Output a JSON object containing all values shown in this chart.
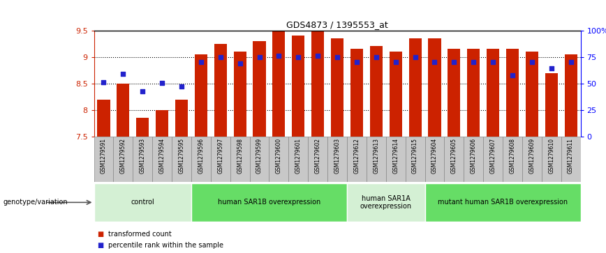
{
  "title": "GDS4873 / 1395553_at",
  "samples": [
    "GSM1279591",
    "GSM1279592",
    "GSM1279593",
    "GSM1279594",
    "GSM1279595",
    "GSM1279596",
    "GSM1279597",
    "GSM1279598",
    "GSM1279599",
    "GSM1279600",
    "GSM1279601",
    "GSM1279602",
    "GSM1279603",
    "GSM1279612",
    "GSM1279613",
    "GSM1279614",
    "GSM1279615",
    "GSM1279604",
    "GSM1279605",
    "GSM1279606",
    "GSM1279607",
    "GSM1279608",
    "GSM1279609",
    "GSM1279610",
    "GSM1279611"
  ],
  "bar_values": [
    8.2,
    8.5,
    7.85,
    8.0,
    8.2,
    9.05,
    9.25,
    9.1,
    9.3,
    9.5,
    9.4,
    9.48,
    9.35,
    9.15,
    9.2,
    9.1,
    9.35,
    9.35,
    9.15,
    9.15,
    9.15,
    9.15,
    9.1,
    8.7,
    9.05
  ],
  "dot_values": [
    8.52,
    8.68,
    8.35,
    8.51,
    8.45,
    8.9,
    9.0,
    8.88,
    9.0,
    9.02,
    9.0,
    9.02,
    9.0,
    8.9,
    9.0,
    8.9,
    9.0,
    8.9,
    8.9,
    8.9,
    8.9,
    8.65,
    8.9,
    8.78,
    8.9
  ],
  "groups": [
    {
      "label": "control",
      "start": 0,
      "end": 5,
      "color": "#d4f0d4"
    },
    {
      "label": "human SAR1B overexpression",
      "start": 5,
      "end": 13,
      "color": "#66dd66"
    },
    {
      "label": "human SAR1A\noverexpression",
      "start": 13,
      "end": 17,
      "color": "#d4f0d4"
    },
    {
      "label": "mutant human SAR1B overexpression",
      "start": 17,
      "end": 25,
      "color": "#66dd66"
    }
  ],
  "ylim": [
    7.5,
    9.5
  ],
  "yticks": [
    7.5,
    8.0,
    8.5,
    9.0,
    9.5
  ],
  "ytick_labels": [
    "7.5",
    "8",
    "8.5",
    "9",
    "9.5"
  ],
  "right_yticks": [
    0,
    25,
    50,
    75,
    100
  ],
  "right_ytick_labels": [
    "0",
    "25",
    "50",
    "75",
    "100%"
  ],
  "bar_color": "#cc2200",
  "dot_color": "#2222cc",
  "bg_color": "#ffffff",
  "plot_bg": "#ffffff",
  "label_bg": "#c8c8c8",
  "genotype_label": "genotype/variation",
  "legend_items": [
    "transformed count",
    "percentile rank within the sample"
  ],
  "grid_dotted_vals": [
    8.0,
    8.5,
    9.0
  ]
}
